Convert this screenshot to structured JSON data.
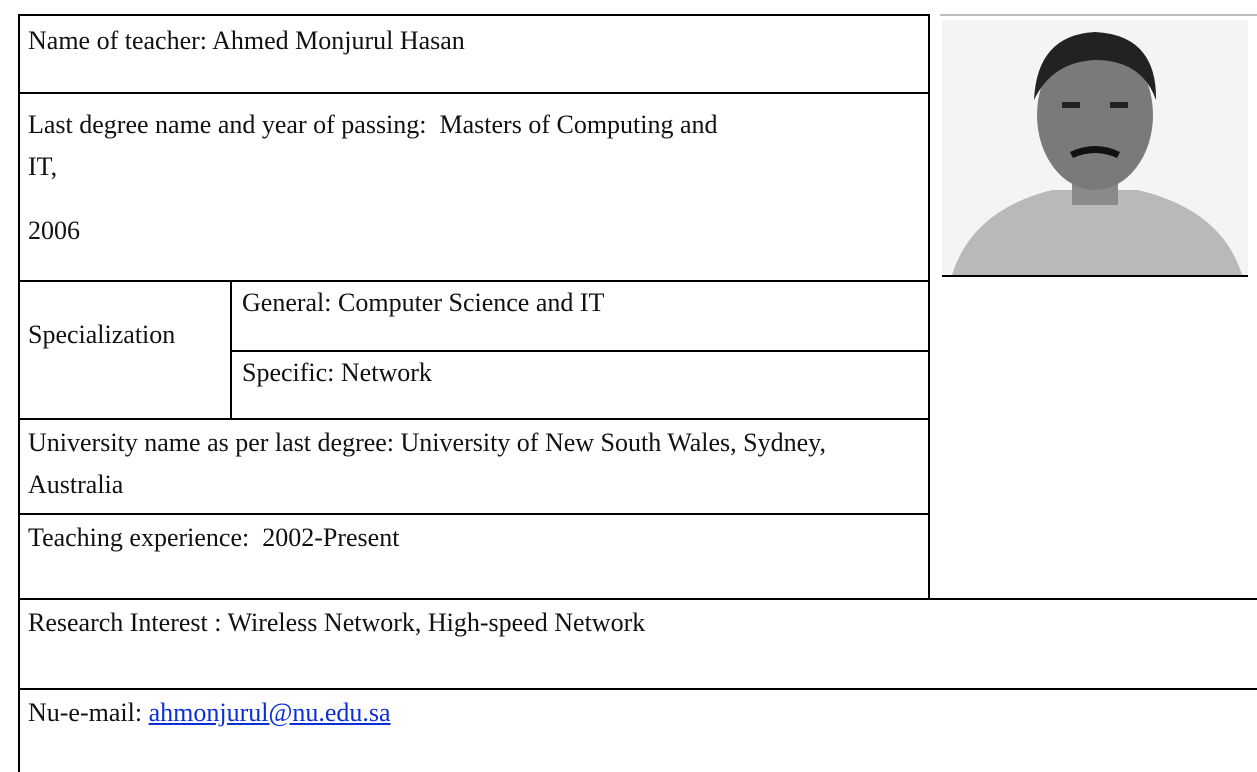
{
  "table": {
    "name": "Name of teacher: Ahmed Monjurul Hasan",
    "degree": "Last degree name and year of passing:  Masters of Computing and IT,",
    "degree_year": "2006",
    "specialization": {
      "label": "Specialization",
      "general": "General: Computer Science and IT",
      "specific": "Specific: Network"
    },
    "university": "University name as per last degree: University of New South Wales, Sydney, Australia",
    "teaching": "Teaching experience:  2002-Present",
    "research": "Research Interest : Wireless Network, High-speed Network",
    "email": {
      "label": "Nu-e-mail:",
      "address": "ahmonjurul@nu.edu.sa"
    }
  }
}
